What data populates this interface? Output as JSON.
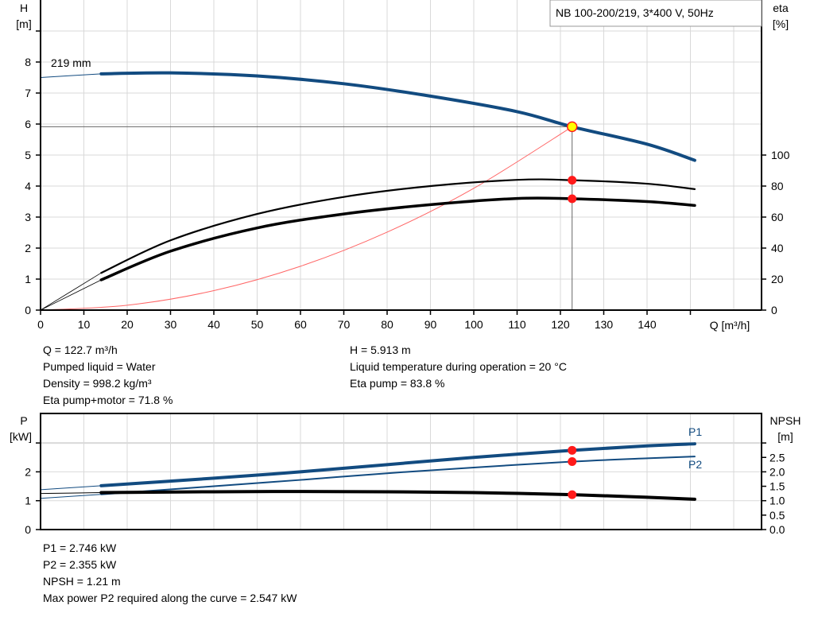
{
  "header": {
    "title": "NB 100-200/219, 3*400 V, 50Hz"
  },
  "colors": {
    "head_curve": "#124b80",
    "power_curve": "#124b80",
    "efficiency": "#000000",
    "npsh": "#000000",
    "system_curve": "#ff6666",
    "operating_point": "#ff1a1a",
    "duty_marker": "#ffff00",
    "grid": "#d9d9d9"
  },
  "info_top": {
    "left": [
      "Q = 122.7 m³/h",
      "Pumped liquid = Water",
      "Density = 998.2 kg/m³",
      "Eta pump+motor = 71.8 %"
    ],
    "right": [
      "H = 5.913 m",
      "Liquid temperature during operation = 20 °C",
      "Eta pump = 83.8 %"
    ]
  },
  "info_bottom": [
    "P1 = 2.746 kW",
    "P2 = 2.355 kW",
    "NPSH = 1.21 m",
    "Max power P2 required along the curve = 2.547 kW"
  ],
  "chart_data": [
    {
      "type": "line",
      "title": "NB 100-200/219, 3*400 V, 50Hz",
      "xlabel": "Q [m³/h]",
      "ylabel": "H\n[m]",
      "y2label": "eta\n[%]",
      "xlim": [
        0,
        166
      ],
      "ylim": [
        0,
        10
      ],
      "y2lim": [
        0,
        200
      ],
      "xticks": [
        0,
        10,
        20,
        30,
        40,
        50,
        60,
        70,
        80,
        90,
        100,
        110,
        120,
        130,
        140
      ],
      "yticks": [
        0,
        1,
        2,
        3,
        4,
        5,
        6,
        7,
        8
      ],
      "y2ticks": [
        0,
        20,
        40,
        60,
        80,
        100
      ],
      "grid": true,
      "recommended_range": [
        14,
        151
      ],
      "operating_point": {
        "Q": 122.7,
        "H": 5.913,
        "eta_pump": 83.8,
        "eta_pump_motor": 71.8
      },
      "curve_label": "219 mm",
      "series": [
        {
          "key": "head",
          "axis": "left",
          "x": [
            0,
            14,
            30,
            50,
            70,
            90,
            110,
            122.7,
            140,
            151
          ],
          "y": [
            7.5,
            7.62,
            7.65,
            7.55,
            7.3,
            6.9,
            6.4,
            5.913,
            5.35,
            4.83
          ]
        },
        {
          "key": "eta_pump",
          "axis": "right",
          "x": [
            0,
            14,
            30,
            50,
            70,
            90,
            110,
            122.7,
            140,
            151
          ],
          "y": [
            0,
            24,
            45,
            62,
            73,
            80,
            84,
            83.8,
            81.5,
            78
          ]
        },
        {
          "key": "eta_pump_motor",
          "axis": "right",
          "x": [
            0,
            14,
            30,
            50,
            70,
            90,
            110,
            122.7,
            140,
            151
          ],
          "y": [
            0,
            19.5,
            38,
            53,
            62,
            68,
            72,
            71.8,
            70,
            67.5
          ]
        },
        {
          "key": "system_curve",
          "axis": "left",
          "x": [
            0,
            20,
            40,
            60,
            80,
            100,
            122.7
          ],
          "y": [
            0,
            0.157,
            0.628,
            1.414,
            2.514,
            3.927,
            5.913
          ]
        }
      ]
    },
    {
      "type": "line",
      "ylabel": "P\n[kW]",
      "y2label": "NPSH\n[m]",
      "xlim": [
        0,
        166
      ],
      "ylim": [
        0,
        4
      ],
      "y2lim": [
        0,
        4
      ],
      "yticks": [
        0,
        1,
        2
      ],
      "y2ticks": [
        "0.0",
        "0.5",
        "1.0",
        "1.5",
        "2.0",
        "2.5"
      ],
      "grid": true,
      "recommended_range": [
        14,
        151
      ],
      "operating_point": {
        "Q": 122.7,
        "P1": 2.746,
        "P2": 2.355,
        "NPSH": 1.21
      },
      "series": [
        {
          "key": "P1",
          "name": "P1",
          "axis": "left",
          "x": [
            0,
            14,
            40,
            60,
            80,
            100,
            122.7,
            140,
            151
          ],
          "y": [
            1.38,
            1.52,
            1.78,
            2.0,
            2.25,
            2.5,
            2.746,
            2.9,
            2.97
          ]
        },
        {
          "key": "P2",
          "name": "P2",
          "axis": "left",
          "x": [
            0,
            14,
            40,
            60,
            80,
            100,
            122.7,
            140,
            151
          ],
          "y": [
            1.08,
            1.22,
            1.5,
            1.72,
            1.95,
            2.15,
            2.355,
            2.47,
            2.53
          ]
        },
        {
          "key": "NPSH",
          "axis": "right",
          "x": [
            0,
            14,
            40,
            60,
            80,
            100,
            122.7,
            140,
            151
          ],
          "y": [
            1.25,
            1.28,
            1.31,
            1.32,
            1.31,
            1.28,
            1.21,
            1.12,
            1.05
          ]
        }
      ]
    }
  ]
}
